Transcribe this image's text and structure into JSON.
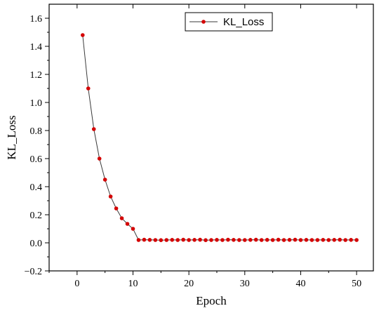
{
  "chart_data": {
    "type": "line",
    "xlabel": "Epoch",
    "ylabel": "KL_Loss",
    "xlim": [
      -5,
      53
    ],
    "ylim": [
      -0.2,
      1.7
    ],
    "xticks": [
      0,
      10,
      20,
      30,
      40,
      50
    ],
    "yticks": [
      -0.2,
      0.0,
      0.2,
      0.4,
      0.6,
      0.8,
      1.0,
      1.2,
      1.4,
      1.6
    ],
    "xtick_labels": [
      "0",
      "10",
      "20",
      "30",
      "40",
      "50"
    ],
    "ytick_labels": [
      "−0.2",
      "0.0",
      "0.2",
      "0.4",
      "0.6",
      "0.8",
      "1.0",
      "1.2",
      "1.4",
      "1.6"
    ],
    "grid": false,
    "legend_position": "top-center",
    "series": [
      {
        "name": "KL_Loss",
        "color": "#d40000",
        "line_color": "#3a3a3a",
        "x": [
          1,
          2,
          3,
          4,
          5,
          6,
          7,
          8,
          9,
          10,
          11,
          12,
          13,
          14,
          15,
          16,
          17,
          18,
          19,
          20,
          21,
          22,
          23,
          24,
          25,
          26,
          27,
          28,
          29,
          30,
          31,
          32,
          33,
          34,
          35,
          36,
          37,
          38,
          39,
          40,
          41,
          42,
          43,
          44,
          45,
          46,
          47,
          48,
          49,
          50
        ],
        "values": [
          1.48,
          1.1,
          0.81,
          0.6,
          0.45,
          0.33,
          0.245,
          0.175,
          0.135,
          0.1,
          0.02,
          0.022,
          0.021,
          0.02,
          0.019,
          0.02,
          0.021,
          0.02,
          0.022,
          0.02,
          0.021,
          0.022,
          0.019,
          0.02,
          0.021,
          0.02,
          0.022,
          0.021,
          0.02,
          0.02,
          0.021,
          0.022,
          0.02,
          0.021,
          0.02,
          0.022,
          0.02,
          0.021,
          0.022,
          0.02,
          0.021,
          0.02,
          0.02,
          0.021,
          0.02,
          0.021,
          0.022,
          0.02,
          0.021,
          0.02
        ]
      }
    ]
  }
}
